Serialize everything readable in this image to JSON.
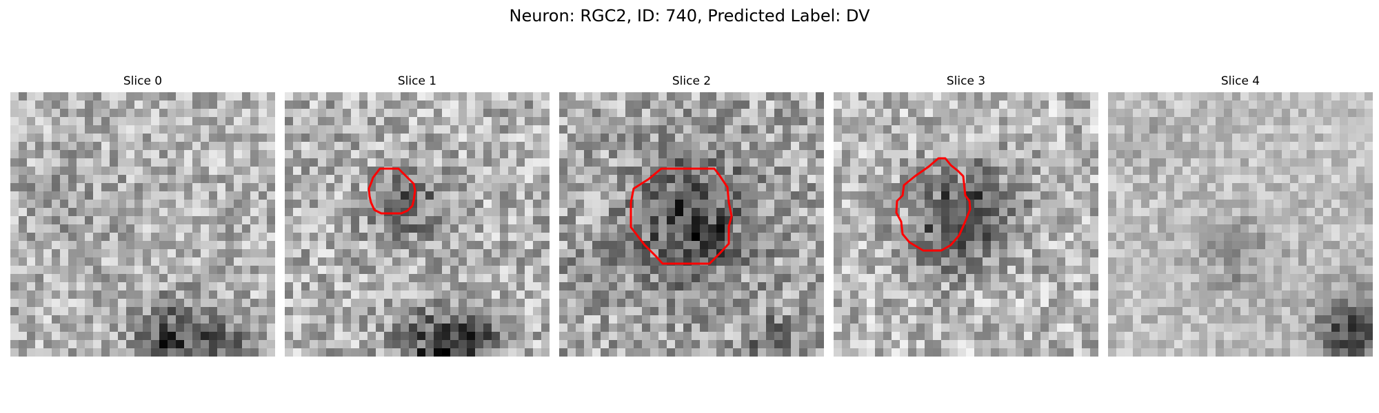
{
  "figure": {
    "title": "Neuron: RGC2, ID: 740, Predicted Label: DV"
  },
  "panels": [
    {
      "title": "Slice 0",
      "has_contour": false
    },
    {
      "title": "Slice 1",
      "has_contour": true
    },
    {
      "title": "Slice 2",
      "has_contour": true
    },
    {
      "title": "Slice 3",
      "has_contour": true
    },
    {
      "title": "Slice 4",
      "has_contour": false
    }
  ],
  "style": {
    "contour_color": "#ff0000",
    "colormap": "grayscale"
  }
}
